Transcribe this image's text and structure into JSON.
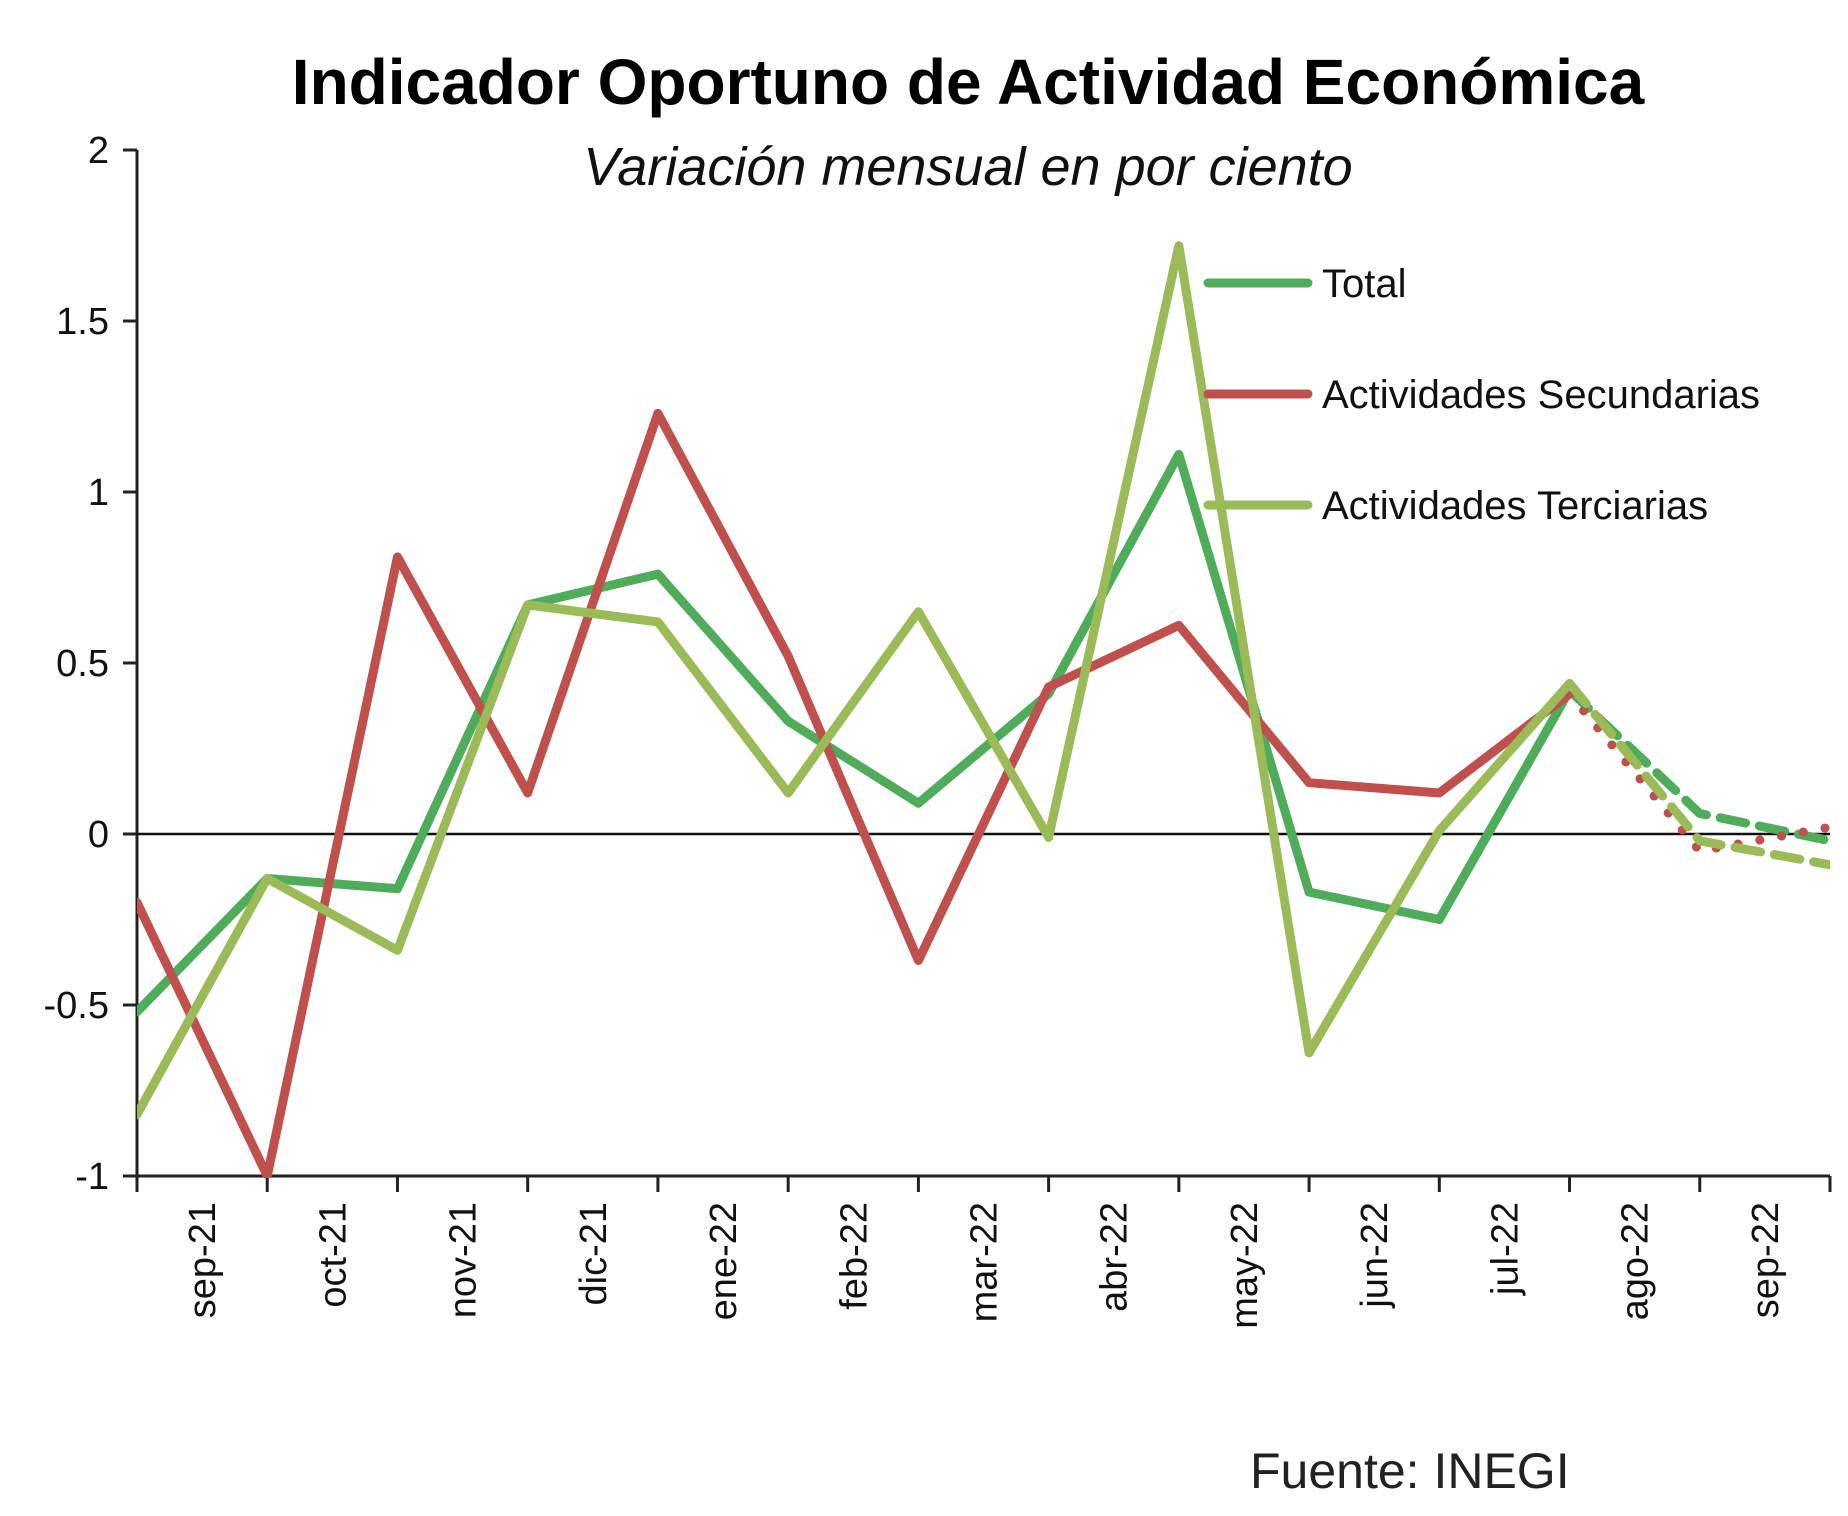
{
  "chart_data": {
    "type": "line",
    "title": "Indicador Oportuno de Actividad Económica",
    "subtitle": "Variación mensual en por ciento",
    "source": "Fuente: INEGI",
    "ylim": [
      -1,
      2
    ],
    "yticks": [
      "2",
      "1.5",
      "1",
      "0.5",
      "0",
      "-0.5",
      "-1"
    ],
    "ytick_values": [
      2,
      1.5,
      1,
      0.5,
      0,
      -0.5,
      -1
    ],
    "categories": [
      "sep-21",
      "oct-21",
      "nov-21",
      "dic-21",
      "ene-22",
      "feb-22",
      "mar-22",
      "abr-22",
      "may-22",
      "jun-22",
      "jul-22",
      "ago-22",
      "sep-22"
    ],
    "legend_position": "top-right",
    "series": [
      {
        "name": "Total",
        "color": "#4eac5b",
        "x": [
          -0.5,
          0.5,
          1.5,
          2.5,
          3.5,
          4.5,
          5.5,
          6.5,
          7.5,
          8.5,
          9.5,
          10.5
        ],
        "values": [
          -0.52,
          -0.13,
          -0.16,
          0.67,
          0.76,
          0.33,
          0.09,
          0.41,
          1.11,
          -0.17,
          -0.25,
          0.42
        ],
        "estimate": {
          "x": [
            10.5,
            11.5,
            12.5
          ],
          "values": [
            0.42,
            0.06,
            -0.02
          ],
          "style": "dashed"
        }
      },
      {
        "name": "Actividades Secundarias",
        "color": "#c0504d",
        "x": [
          -0.5,
          0.5,
          1.5,
          2.5,
          3.5,
          4.5,
          5.5,
          6.5,
          7.5,
          8.5,
          9.5,
          10.5
        ],
        "values": [
          -0.2,
          -1.0,
          0.81,
          0.12,
          1.23,
          0.52,
          -0.37,
          0.43,
          0.61,
          0.15,
          0.12,
          0.41
        ],
        "estimate": {
          "x": [
            10.5,
            11.5,
            12.5
          ],
          "values": [
            0.41,
            -0.05,
            0.02
          ],
          "style": "dotted"
        }
      },
      {
        "name": "Actividades Terciarias",
        "color": "#9bbb59",
        "x": [
          -0.5,
          0.5,
          1.5,
          2.5,
          3.5,
          4.5,
          5.5,
          6.5,
          7.5,
          8.5,
          9.5,
          10.5
        ],
        "values": [
          -0.82,
          -0.13,
          -0.34,
          0.67,
          0.62,
          0.12,
          0.65,
          -0.01,
          1.72,
          -0.64,
          0.01,
          0.44
        ],
        "estimate": {
          "x": [
            10.5,
            11.5,
            12.5
          ],
          "values": [
            0.44,
            -0.02,
            -0.09
          ],
          "style": "dashed"
        }
      }
    ]
  }
}
